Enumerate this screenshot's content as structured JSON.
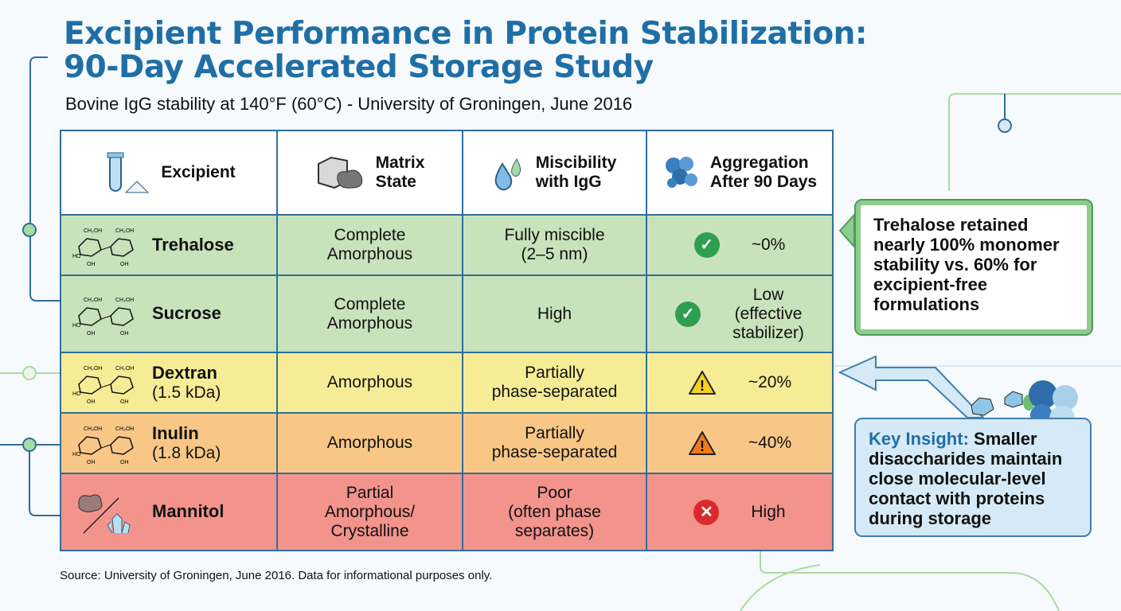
{
  "title": "Excipient Performance in Protein Stabilization: 90-Day Accelerated Storage Study",
  "title_line1": "Excipient Performance in Protein Stabilization:",
  "title_line2": "90-Day Accelerated Storage Study",
  "subtitle": "Bovine IgG stability at 140°F (60°C) - University of Groningen, June 2016",
  "headers": [
    {
      "l1": "Excipient",
      "l2": "",
      "icon": "test-tube-powder-icon"
    },
    {
      "l1": "Matrix",
      "l2": "State",
      "icon": "matrix-block-icon"
    },
    {
      "l1": "Miscibility",
      "l2": "with IgG",
      "icon": "droplets-icon"
    },
    {
      "l1": "Aggregation",
      "l2": "After 90 Days",
      "icon": "protein-aggregate-icon"
    }
  ],
  "rows": [
    {
      "name": "Trehalose",
      "sub": "",
      "matrix": [
        "Complete",
        "Amorphous",
        ""
      ],
      "misc": [
        "Fully miscible",
        "(2–5 nm)",
        ""
      ],
      "agg": [
        "~0%",
        "",
        ""
      ],
      "status": "check",
      "color": "#c8e2bc"
    },
    {
      "name": "Sucrose",
      "sub": "",
      "matrix": [
        "Complete",
        "Amorphous",
        ""
      ],
      "misc": [
        "High",
        "",
        ""
      ],
      "agg": [
        "Low",
        "(effective",
        "stabilizer)"
      ],
      "status": "check",
      "color": "#c8e2bc"
    },
    {
      "name": "Dextran",
      "sub": "(1.5 kDa)",
      "matrix": [
        "Amorphous",
        "",
        ""
      ],
      "misc": [
        "Partially",
        "phase-separated",
        ""
      ],
      "agg": [
        "~20%",
        "",
        ""
      ],
      "status": "warning",
      "color": "#f6ec95"
    },
    {
      "name": "Inulin",
      "sub": "(1.8 kDa)",
      "matrix": [
        "Amorphous",
        "",
        ""
      ],
      "misc": [
        "Partially",
        "phase-separated",
        ""
      ],
      "agg": [
        "~40%",
        "",
        ""
      ],
      "status": "warning",
      "color": "#f8c786"
    },
    {
      "name": "Mannitol",
      "sub": "",
      "matrix": [
        "Partial",
        "Amorphous/",
        "Crystalline"
      ],
      "misc": [
        "Poor",
        "(often phase",
        "separates)"
      ],
      "agg": [
        "High",
        "",
        ""
      ],
      "status": "error",
      "color": "#f2938c"
    }
  ],
  "callout_trehalose": "Trehalose retained nearly 100% monomer stability vs. 60% for excipient-free formulations",
  "key_insight": {
    "label": "Key Insight:",
    "text": " Smaller disaccharides maintain close molecular-level contact with proteins during storage"
  },
  "source": "Source: University of Groningen, June 2016. Data for informational purposes only.",
  "colors": {
    "title": "#1f6fa6",
    "border": "#2f6e9c",
    "check": "#2e9e4f",
    "warning_yellow": "#f4d21c",
    "warning_orange": "#f07a1c",
    "error": "#d92b2b"
  }
}
